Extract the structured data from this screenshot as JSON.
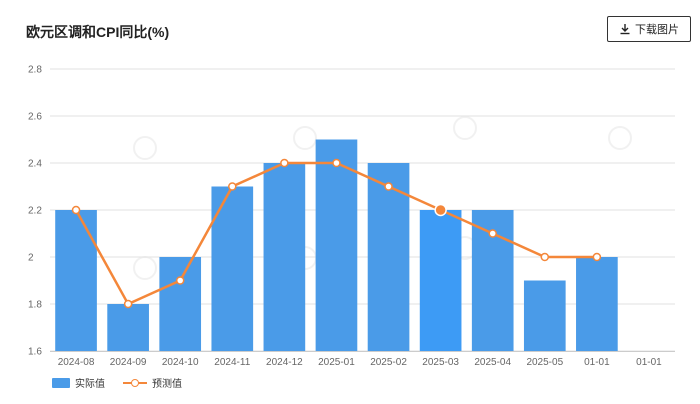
{
  "header": {
    "title": "欧元区调和CPI同比(%)",
    "download_label": "下载图片",
    "download_icon": "download-icon"
  },
  "colors": {
    "bar": "#4a9be8",
    "bar_highlight": "#3d9bf5",
    "line": "#f4873a",
    "grid": "#e2e2e2",
    "axis": "#cccccc"
  },
  "chart_data": {
    "type": "bar",
    "title": "欧元区调和CPI同比(%)",
    "xlabel": "",
    "ylabel": "",
    "categories": [
      "2024-08",
      "2024-09",
      "2024-10",
      "2024-11",
      "2024-12",
      "2025-01",
      "2025-02",
      "2025-03",
      "2025-04",
      "2025-05",
      "01-01",
      "01-01"
    ],
    "ylim": [
      1.6,
      2.8
    ],
    "yticks": [
      "1.6",
      "1.8",
      "2",
      "2.2",
      "2.4",
      "2.6",
      "2.8"
    ],
    "grid": true,
    "legend_position": "bottom-left",
    "highlighted_category": "2025-03",
    "series": [
      {
        "name": "实际值",
        "type": "bar",
        "values": [
          2.2,
          1.8,
          2.0,
          2.3,
          2.4,
          2.5,
          2.4,
          2.2,
          2.2,
          1.9,
          2.0,
          null
        ]
      },
      {
        "name": "预测值",
        "type": "line",
        "values": [
          2.2,
          1.8,
          1.9,
          2.3,
          2.4,
          2.4,
          2.3,
          2.2,
          2.1,
          2.0,
          2.0,
          null
        ]
      }
    ]
  }
}
